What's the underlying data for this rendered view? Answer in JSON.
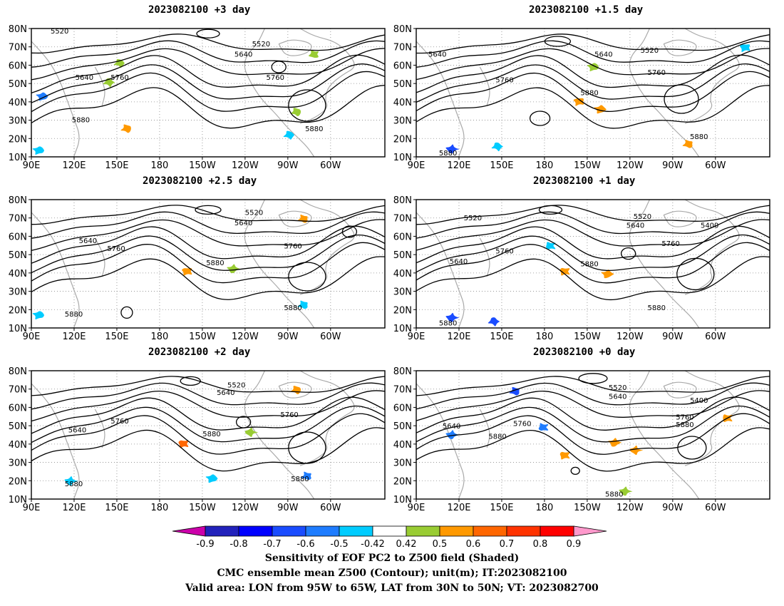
{
  "panels": [
    {
      "title": "2023082100 +3 day"
    },
    {
      "title": "2023082100 +1.5 day"
    },
    {
      "title": "2023082100 +2.5 day"
    },
    {
      "title": "2023082100 +1 day"
    },
    {
      "title": "2023082100 +2 day"
    },
    {
      "title": "2023082100 +0 day"
    }
  ],
  "axes": {
    "lat_labels": [
      "80N",
      "70N",
      "60N",
      "50N",
      "40N",
      "30N",
      "20N",
      "10N"
    ],
    "lon_labels": [
      "90E",
      "120E",
      "150E",
      "180",
      "150W",
      "120W",
      "90W",
      "60W"
    ]
  },
  "contour_labels": {
    "c5400": "5400",
    "c5520": "5520",
    "c5640": "5640",
    "c5760": "5760",
    "c5880": "5880"
  },
  "colorbar": {
    "ticks": [
      "-0.9",
      "-0.8",
      "-0.7",
      "-0.6",
      "-0.5",
      "-0.42",
      "0.42",
      "0.5",
      "0.6",
      "0.7",
      "0.8",
      "0.9"
    ],
    "colors": [
      "#2222bb",
      "#0000ff",
      "#1a4cff",
      "#1e7cff",
      "#00ccff",
      "#ffffff",
      "#99cc33",
      "#ff9900",
      "#ff6600",
      "#ff3300",
      "#ff0000"
    ],
    "low_arrow_color": "#cc00aa",
    "high_arrow_color": "#ff99cc"
  },
  "captions": {
    "line1": "Sensitivity of EOF PC2 to Z500 field (Shaded)",
    "line2": "CMC ensemble mean Z500 (Contour); unit(m); IT:2023082100",
    "line3": "Valid area: LON from 95W to 65W, LAT from 30N to 50N; VT: 2023082700"
  }
}
